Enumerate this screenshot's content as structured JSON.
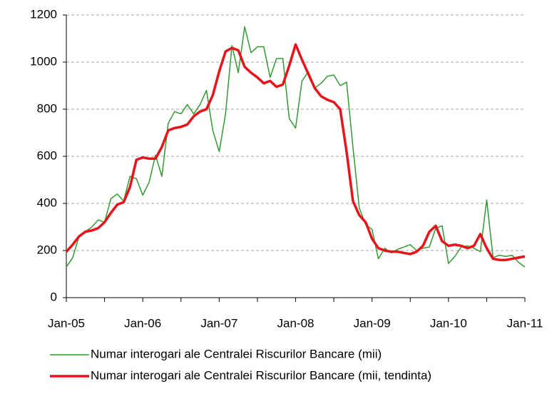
{
  "chart_data": {
    "type": "line",
    "categories": [
      "Jan-05",
      null,
      null,
      null,
      null,
      null,
      null,
      null,
      null,
      null,
      null,
      null,
      "Jan-06",
      null,
      null,
      null,
      null,
      null,
      null,
      null,
      null,
      null,
      null,
      null,
      "Jan-07",
      null,
      null,
      null,
      null,
      null,
      null,
      null,
      null,
      null,
      null,
      null,
      "Jan-08",
      null,
      null,
      null,
      null,
      null,
      null,
      null,
      null,
      null,
      null,
      null,
      "Jan-09",
      null,
      null,
      null,
      null,
      null,
      null,
      null,
      null,
      null,
      null,
      null,
      "Jan-10",
      null,
      null,
      null,
      null,
      null,
      null,
      null,
      null,
      null,
      null,
      null,
      "Jan-11"
    ],
    "series": [
      {
        "name": "Numar interogari ale Centralei Riscurilor Bancare (mii)",
        "color": "#339933",
        "width": 1.5,
        "values": [
          130,
          170,
          260,
          280,
          300,
          330,
          320,
          420,
          440,
          410,
          515,
          505,
          435,
          490,
          605,
          515,
          740,
          790,
          780,
          820,
          780,
          820,
          880,
          710,
          620,
          780,
          1070,
          955,
          1150,
          1040,
          1065,
          1065,
          935,
          1015,
          1015,
          760,
          720,
          920,
          960,
          890,
          910,
          940,
          945,
          900,
          915,
          640,
          380,
          310,
          290,
          165,
          210,
          190,
          205,
          215,
          225,
          200,
          210,
          215,
          295,
          305,
          145,
          175,
          215,
          220,
          210,
          195,
          415,
          170,
          180,
          175,
          180,
          150,
          130
        ]
      },
      {
        "name": "Numar interogari ale Centralei Riscurilor Bancare (mii, tendinta)",
        "color": "#e8141b",
        "width": 3.5,
        "values": [
          195,
          225,
          260,
          280,
          285,
          295,
          320,
          360,
          395,
          405,
          470,
          585,
          595,
          590,
          590,
          640,
          710,
          720,
          725,
          735,
          770,
          790,
          800,
          860,
          960,
          1045,
          1060,
          1050,
          980,
          955,
          935,
          910,
          920,
          895,
          905,
          985,
          1075,
          1010,
          950,
          890,
          855,
          840,
          830,
          800,
          620,
          410,
          350,
          320,
          250,
          210,
          200,
          195,
          195,
          190,
          185,
          195,
          220,
          280,
          305,
          240,
          220,
          225,
          220,
          210,
          220,
          270,
          210,
          165,
          160,
          160,
          165,
          170,
          175
        ]
      }
    ],
    "ylim": [
      0,
      1200
    ],
    "yticks": [
      0,
      200,
      400,
      600,
      800,
      1000,
      1200
    ],
    "grid": true
  }
}
